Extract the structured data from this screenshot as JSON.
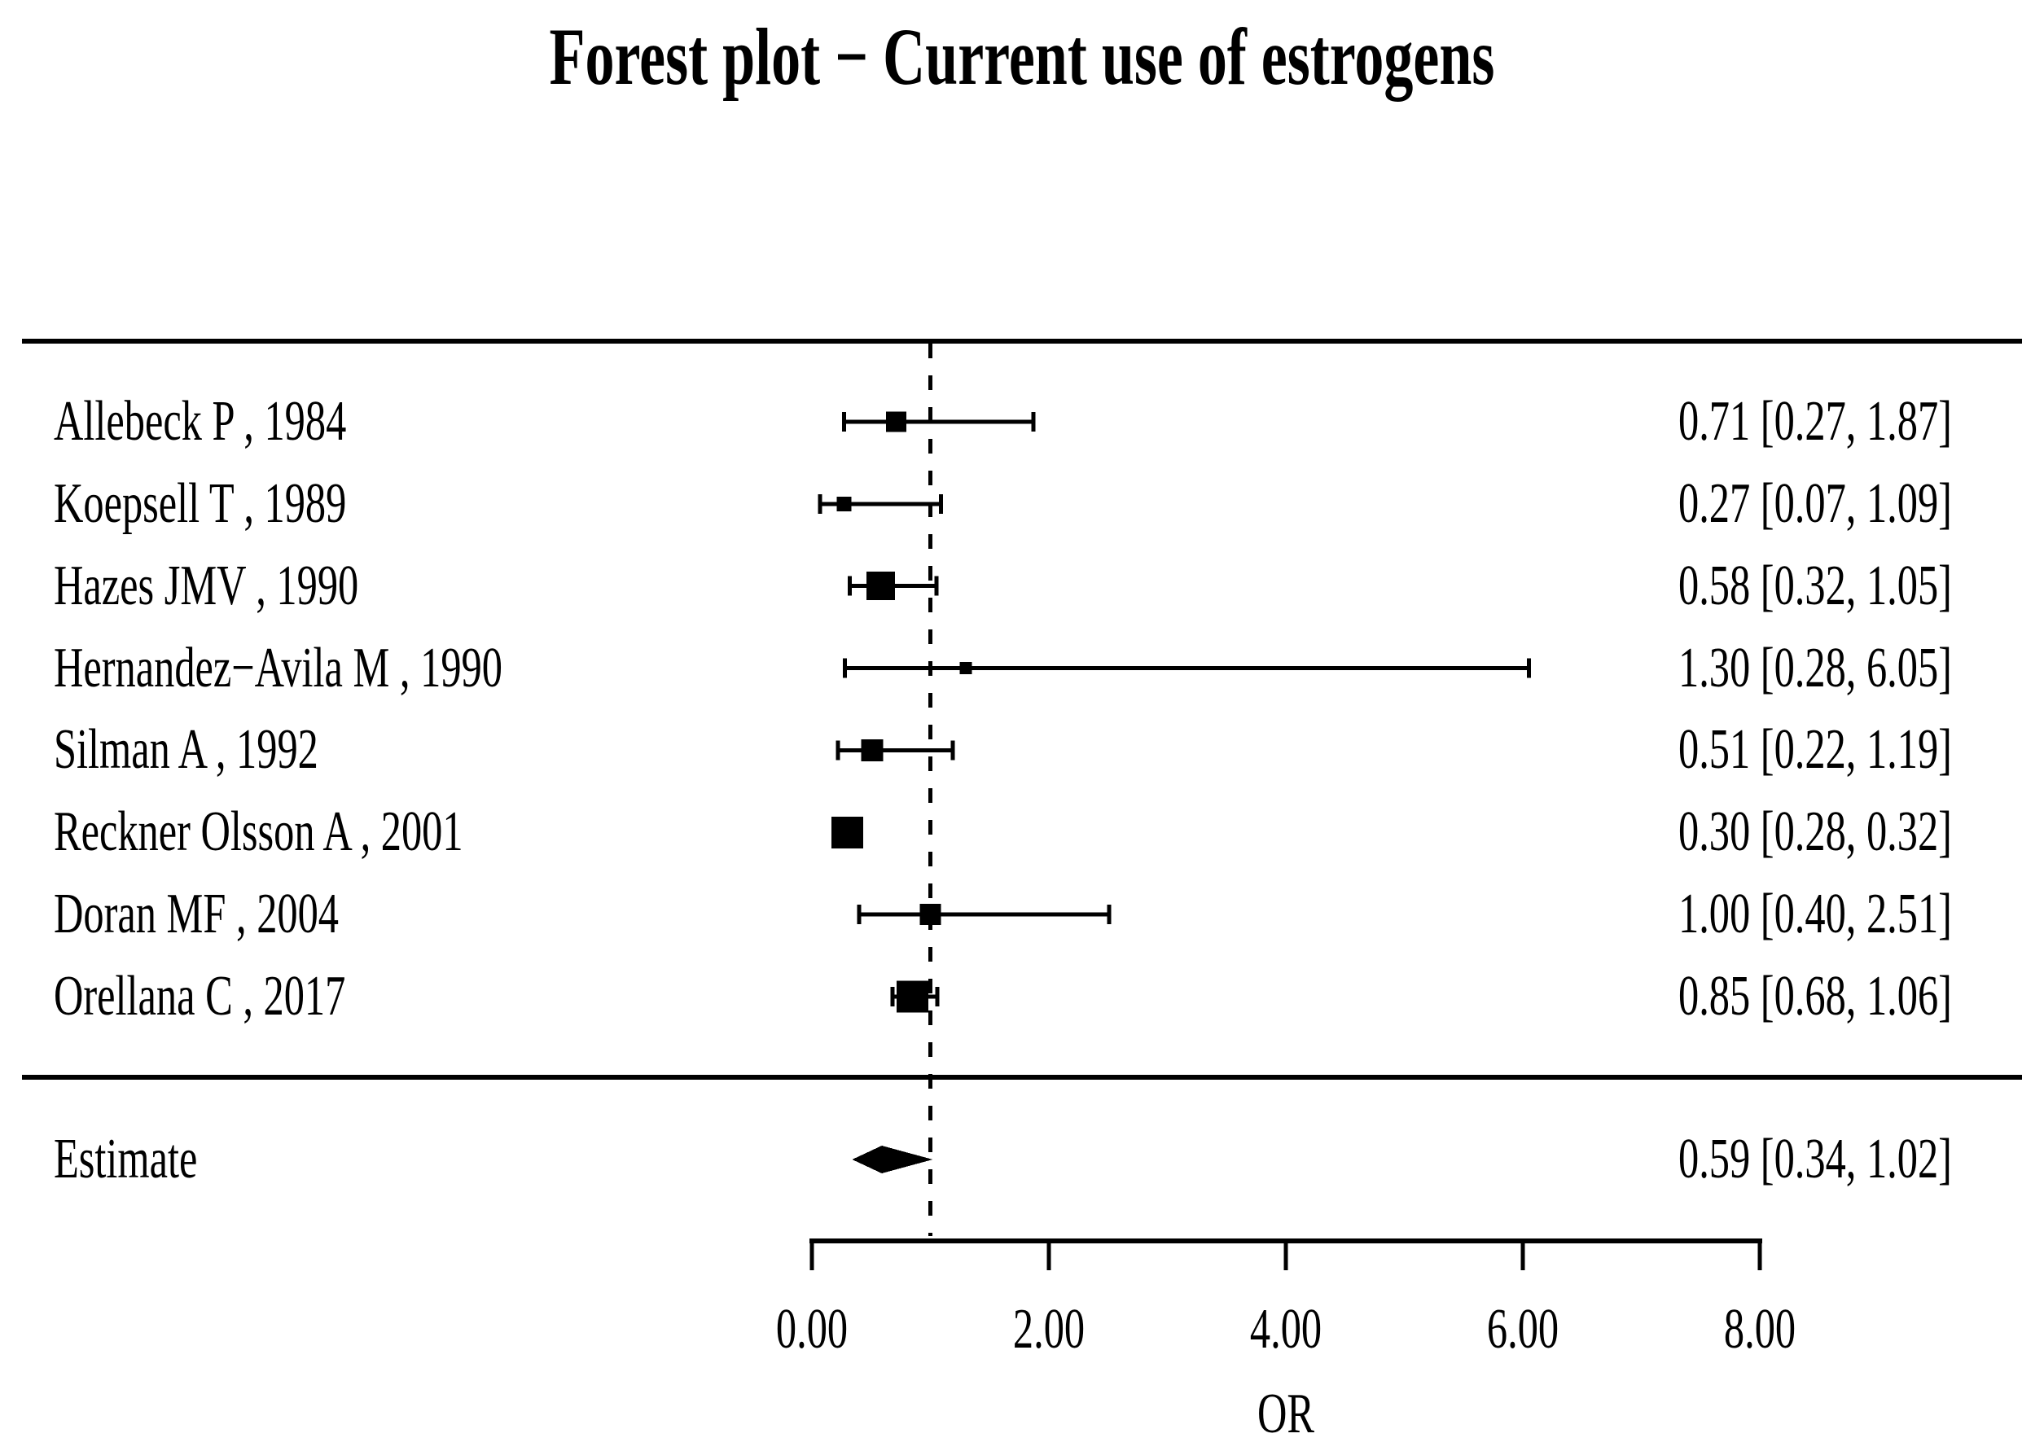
{
  "title": "Forest plot − Current use of estrogens",
  "colors": {
    "ink": "#000000",
    "background": "#ffffff"
  },
  "chart_data": {
    "type": "forest",
    "title": "Forest plot − Current use of estrogens",
    "xlabel": "OR",
    "xlim": [
      0,
      8
    ],
    "ref_line": 1.0,
    "grid": false,
    "x_ticks": [
      0,
      2,
      4,
      6,
      8
    ],
    "x_tick_labels": [
      "0.00",
      "2.00",
      "4.00",
      "6.00",
      "8.00"
    ],
    "studies": [
      {
        "label": "Allebeck P , 1984",
        "or": 0.71,
        "lo": 0.27,
        "hi": 1.87,
        "text": "0.71 [0.27, 1.87]",
        "marker_size": 25
      },
      {
        "label": "Koepsell T , 1989",
        "or": 0.27,
        "lo": 0.07,
        "hi": 1.09,
        "text": "0.27 [0.07, 1.09]",
        "marker_size": 18
      },
      {
        "label": "Hazes JMV , 1990",
        "or": 0.58,
        "lo": 0.32,
        "hi": 1.05,
        "text": "0.58 [0.32, 1.05]",
        "marker_size": 35
      },
      {
        "label": "Hernandez−Avila M , 1990",
        "or": 1.3,
        "lo": 0.28,
        "hi": 6.05,
        "text": "1.30 [0.28, 6.05]",
        "marker_size": 15
      },
      {
        "label": "Silman A , 1992",
        "or": 0.51,
        "lo": 0.22,
        "hi": 1.19,
        "text": "0.51 [0.22, 1.19]",
        "marker_size": 27
      },
      {
        "label": "Reckner Olsson A , 2001",
        "or": 0.3,
        "lo": 0.28,
        "hi": 0.32,
        "text": "0.30 [0.28, 0.32]",
        "marker_size": 39
      },
      {
        "label": "Doran MF , 2004",
        "or": 1.0,
        "lo": 0.4,
        "hi": 2.51,
        "text": "1.00 [0.40, 2.51]",
        "marker_size": 26
      },
      {
        "label": "Orellana C , 2017",
        "or": 0.85,
        "lo": 0.68,
        "hi": 1.06,
        "text": "0.85 [0.68, 1.06]",
        "marker_size": 39
      }
    ],
    "estimate": {
      "label": "Estimate",
      "or": 0.59,
      "lo": 0.34,
      "hi": 1.02,
      "text": "0.59 [0.34, 1.02]"
    }
  }
}
